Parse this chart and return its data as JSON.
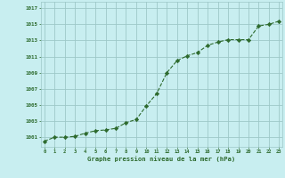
{
  "x": [
    0,
    1,
    2,
    3,
    4,
    5,
    6,
    7,
    8,
    9,
    10,
    11,
    12,
    13,
    14,
    15,
    16,
    17,
    18,
    19,
    20,
    21,
    22,
    23
  ],
  "y": [
    1000.6,
    1001.0,
    1001.0,
    1001.1,
    1001.5,
    1001.7,
    1001.9,
    1002.1,
    1002.8,
    1003.2,
    1004.9,
    1006.4,
    1009.0,
    1010.5,
    1011.0,
    1011.5,
    1012.4,
    1012.8,
    1013.0,
    1013.1,
    1013.1,
    1014.8,
    1014.9,
    1015.0
  ],
  "y_final": [
    1000.5,
    1001.0,
    1001.0,
    1001.1,
    1001.5,
    1001.8,
    1001.9,
    1002.1,
    1002.8,
    1003.2,
    1004.9,
    1006.4,
    1009.0,
    1010.5,
    1011.1,
    1011.5,
    1012.4,
    1012.8,
    1013.1,
    1013.1,
    1013.1,
    1014.8,
    1015.0,
    1015.4
  ],
  "line_color": "#2d6a2d",
  "marker_color": "#2d6a2d",
  "bg_color": "#c8eef0",
  "grid_color": "#9dc8c8",
  "xlabel": "Graphe pression niveau de la mer (hPa)",
  "yticks": [
    1001,
    1003,
    1005,
    1007,
    1009,
    1011,
    1013,
    1015,
    1017
  ],
  "xticks": [
    0,
    1,
    2,
    3,
    4,
    5,
    6,
    7,
    8,
    9,
    10,
    11,
    12,
    13,
    14,
    15,
    16,
    17,
    18,
    19,
    20,
    21,
    22,
    23
  ],
  "ylim": [
    999.8,
    1017.8
  ],
  "xlim": [
    -0.3,
    23.3
  ]
}
